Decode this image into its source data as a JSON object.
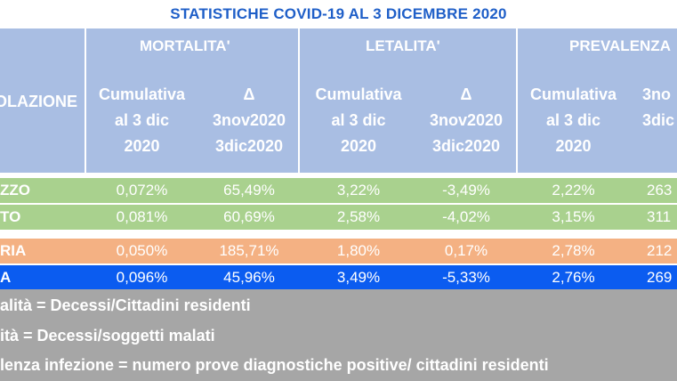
{
  "title": "STATISTICHE COVID-19 AL 3 DICEMBRE 2020",
  "header": {
    "population": "OLAZIONE",
    "groups": [
      "MORTALITA'",
      "LETALITA'",
      "PREVALENZA"
    ],
    "sub_cumulative": "Cumulativa\nal 3 dic\n2020",
    "sub_delta": "Δ\n3nov2020\n3dic2020",
    "sub_delta_cut": "3no\n3dic"
  },
  "rows": [
    {
      "name": "ZZO",
      "mort_cum": "0,072%",
      "mort_delta": "65,49%",
      "let_cum": "3,22%",
      "let_delta": "-3,49%",
      "prev_cum": "2,22%",
      "prev_delta": "263",
      "bg": "#a9d18e",
      "color": "#ffffff"
    },
    {
      "name": "TO",
      "mort_cum": "0,081%",
      "mort_delta": "60,69%",
      "let_cum": "2,58%",
      "let_delta": "-4,02%",
      "prev_cum": "3,15%",
      "prev_delta": "311",
      "bg": "#a9d18e",
      "color": "#ffffff"
    },
    {
      "name": "RIA",
      "mort_cum": "0,050%",
      "mort_delta": "185,71%",
      "let_cum": "1,80%",
      "let_delta": "0,17%",
      "prev_cum": "2,78%",
      "prev_delta": "212",
      "bg": "#f4b183",
      "color": "#ffffff"
    },
    {
      "name": "A",
      "mort_cum": "0,096%",
      "mort_delta": "45,96%",
      "let_cum": "3,49%",
      "let_delta": "-5,33%",
      "prev_cum": "2,76%",
      "prev_delta": "269",
      "bg": "#0b5cf0",
      "color": "#ffffff"
    }
  ],
  "notes": [
    "alità = Decessi/Cittadini residenti",
    "ità = Decessi/soggetti malati",
    "lenza infezione = numero prove diagnostiche positive/ cittadini residenti"
  ]
}
